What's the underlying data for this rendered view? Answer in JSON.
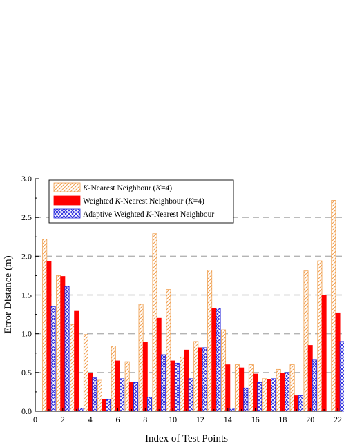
{
  "chart_data": {
    "type": "bar",
    "xlabel": "Index of Test Points",
    "ylabel": "Error Distance (m)",
    "ylim": [
      0,
      3.0
    ],
    "xlim": [
      0,
      22.3
    ],
    "yticks": [
      "0.0",
      "0.5",
      "1.0",
      "1.5",
      "2.0",
      "2.5",
      "3.0"
    ],
    "xticks": [
      "0",
      "2",
      "4",
      "6",
      "8",
      "10",
      "12",
      "14",
      "16",
      "18",
      "20",
      "22"
    ],
    "grid": "horizontal dashed",
    "legend_position": "top-left",
    "x": [
      1,
      2,
      3,
      4,
      5,
      6,
      7,
      8,
      9,
      10,
      11,
      12,
      13,
      14,
      15,
      16,
      17,
      18,
      19,
      20,
      21,
      22
    ],
    "series": [
      {
        "name_parts": [
          {
            "text": "K",
            "italic": true
          },
          {
            "text": "-Nearest Neighbour (",
            "italic": false
          },
          {
            "text": "K",
            "italic": true
          },
          {
            "text": "=4)",
            "italic": false
          }
        ],
        "style": "hatch-diagonal",
        "color": "#f0a050",
        "values": [
          2.22,
          1.75,
          1.12,
          0.99,
          0.4,
          0.84,
          0.64,
          1.38,
          2.29,
          1.57,
          0.7,
          0.9,
          1.82,
          1.05,
          0.6,
          0.6,
          0.42,
          0.54,
          0.6,
          1.81,
          1.94,
          2.72
        ]
      },
      {
        "name_parts": [
          {
            "text": "Weighted ",
            "italic": false
          },
          {
            "text": "K",
            "italic": true
          },
          {
            "text": "-Nearest Neighbour (",
            "italic": false
          },
          {
            "text": "K",
            "italic": true
          },
          {
            "text": "=4)",
            "italic": false
          }
        ],
        "style": "solid",
        "color": "#ff0000",
        "values": [
          1.93,
          1.74,
          1.29,
          0.49,
          0.15,
          0.65,
          0.37,
          0.89,
          1.2,
          0.65,
          0.79,
          0.82,
          1.33,
          0.6,
          0.56,
          0.48,
          0.41,
          0.49,
          0.2,
          0.85,
          1.5,
          1.27
        ]
      },
      {
        "name_parts": [
          {
            "text": "Adaptive Weighted  ",
            "italic": false
          },
          {
            "text": "K",
            "italic": true
          },
          {
            "text": "-Nearest Neighbour",
            "italic": false
          }
        ],
        "style": "hatch-cross",
        "color": "#1f1fdc",
        "values": [
          1.35,
          1.61,
          0.04,
          0.43,
          0.15,
          0.42,
          0.37,
          0.18,
          0.73,
          0.62,
          0.42,
          0.82,
          1.33,
          0.04,
          0.3,
          0.37,
          0.42,
          0.5,
          0.2,
          0.66,
          0.0,
          0.9
        ]
      }
    ]
  }
}
